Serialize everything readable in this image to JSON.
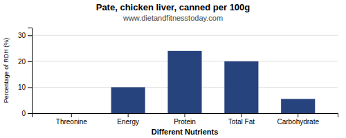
{
  "chart_data": {
    "type": "bar",
    "title": "Pate, chicken liver, canned per 100g",
    "subtitle": "www.dietandfitnesstoday.com",
    "xlabel": "Different Nutrients",
    "ylabel": "Percentage of RDH (%)",
    "categories": [
      "Threonine",
      "Energy",
      "Protein",
      "Total Fat",
      "Carbohydrate"
    ],
    "values": [
      0,
      10,
      24,
      20,
      5.5
    ],
    "color": "#27437e",
    "ylim": [
      0,
      33
    ],
    "yticks": [
      0,
      10,
      20,
      30
    ],
    "grid": true
  }
}
